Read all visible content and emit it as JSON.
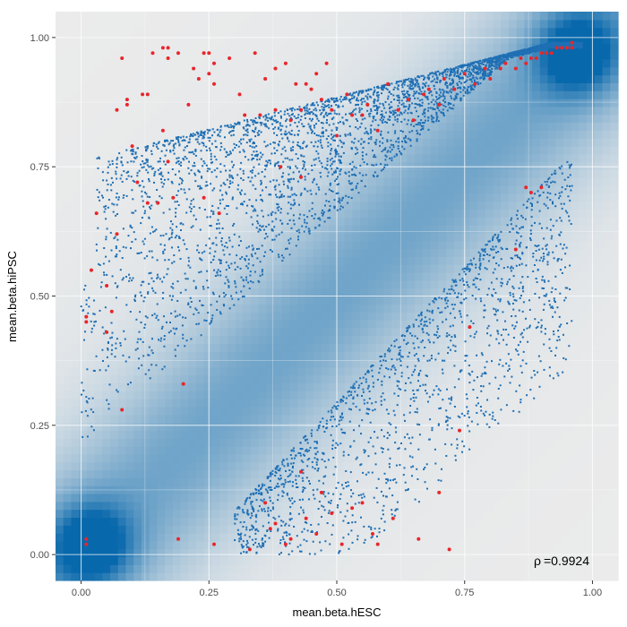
{
  "chart_data": {
    "type": "scatter",
    "title": "",
    "xlabel": "mean.beta.hESC",
    "ylabel": "mean.beta.hiPSC",
    "xlim": [
      -0.05,
      1.05
    ],
    "ylim": [
      -0.05,
      1.05
    ],
    "x_ticks": [
      "0.00",
      "0.25",
      "0.50",
      "0.75",
      "1.00"
    ],
    "y_ticks": [
      "0.00",
      "0.25",
      "0.50",
      "0.75",
      "1.00"
    ],
    "grid": true,
    "background": "density heatmap of all sites (light grey to blue), dense along the diagonal with hot spots near (0,0) and (1,1)",
    "annotation": {
      "rho_symbol": "ρ",
      "equals": "=",
      "value": "0.9924"
    },
    "series": [
      {
        "color": "#1f6fb4",
        "description": "differentially methylated sites (blue points)",
        "clusters": [
          {
            "region": "upper-left band (hiPSC > hESC)",
            "x_range": [
              0.0,
              0.98
            ],
            "y_offset_range": [
              0.2,
              0.55
            ],
            "approx_count": 3500
          },
          {
            "region": "lower-right band (hESC > hiPSC)",
            "x_range": [
              0.28,
              0.98
            ],
            "y_offset_range": [
              -0.55,
              -0.2
            ],
            "approx_count": 1600
          }
        ]
      },
      {
        "color": "#e8262b",
        "description": "highlighted sites (red points)",
        "points": [
          [
            0.01,
            0.02
          ],
          [
            0.01,
            0.03
          ],
          [
            0.01,
            0.45
          ],
          [
            0.01,
            0.46
          ],
          [
            0.02,
            0.55
          ],
          [
            0.03,
            0.66
          ],
          [
            0.05,
            0.43
          ],
          [
            0.05,
            0.52
          ],
          [
            0.06,
            0.47
          ],
          [
            0.07,
            0.86
          ],
          [
            0.07,
            0.62
          ],
          [
            0.08,
            0.28
          ],
          [
            0.08,
            0.96
          ],
          [
            0.09,
            0.87
          ],
          [
            0.09,
            0.88
          ],
          [
            0.1,
            0.79
          ],
          [
            0.11,
            0.72
          ],
          [
            0.12,
            0.89
          ],
          [
            0.13,
            0.89
          ],
          [
            0.13,
            0.68
          ],
          [
            0.14,
            0.97
          ],
          [
            0.15,
            0.68
          ],
          [
            0.16,
            0.98
          ],
          [
            0.16,
            0.82
          ],
          [
            0.17,
            0.98
          ],
          [
            0.17,
            0.96
          ],
          [
            0.17,
            0.76
          ],
          [
            0.18,
            0.69
          ],
          [
            0.19,
            0.97
          ],
          [
            0.2,
            0.33
          ],
          [
            0.21,
            0.87
          ],
          [
            0.22,
            0.94
          ],
          [
            0.23,
            0.92
          ],
          [
            0.24,
            0.97
          ],
          [
            0.24,
            0.69
          ],
          [
            0.25,
            0.97
          ],
          [
            0.25,
            0.93
          ],
          [
            0.26,
            0.91
          ],
          [
            0.26,
            0.95
          ],
          [
            0.27,
            0.66
          ],
          [
            0.29,
            0.96
          ],
          [
            0.31,
            0.89
          ],
          [
            0.32,
            0.85
          ],
          [
            0.34,
            0.97
          ],
          [
            0.35,
            0.85
          ],
          [
            0.36,
            0.92
          ],
          [
            0.38,
            0.94
          ],
          [
            0.38,
            0.86
          ],
          [
            0.39,
            0.75
          ],
          [
            0.4,
            0.95
          ],
          [
            0.41,
            0.84
          ],
          [
            0.42,
            0.91
          ],
          [
            0.43,
            0.86
          ],
          [
            0.43,
            0.73
          ],
          [
            0.44,
            0.91
          ],
          [
            0.45,
            0.9
          ],
          [
            0.46,
            0.93
          ],
          [
            0.47,
            0.88
          ],
          [
            0.48,
            0.95
          ],
          [
            0.49,
            0.86
          ],
          [
            0.5,
            0.81
          ],
          [
            0.52,
            0.89
          ],
          [
            0.53,
            0.85
          ],
          [
            0.55,
            0.85
          ],
          [
            0.56,
            0.87
          ],
          [
            0.58,
            0.82
          ],
          [
            0.6,
            0.91
          ],
          [
            0.62,
            0.86
          ],
          [
            0.64,
            0.88
          ],
          [
            0.65,
            0.84
          ],
          [
            0.67,
            0.89
          ],
          [
            0.68,
            0.9
          ],
          [
            0.7,
            0.87
          ],
          [
            0.71,
            0.92
          ],
          [
            0.73,
            0.9
          ],
          [
            0.75,
            0.93
          ],
          [
            0.77,
            0.91
          ],
          [
            0.79,
            0.94
          ],
          [
            0.8,
            0.92
          ],
          [
            0.82,
            0.94
          ],
          [
            0.83,
            0.95
          ],
          [
            0.85,
            0.94
          ],
          [
            0.86,
            0.96
          ],
          [
            0.87,
            0.95
          ],
          [
            0.88,
            0.96
          ],
          [
            0.89,
            0.96
          ],
          [
            0.9,
            0.97
          ],
          [
            0.91,
            0.97
          ],
          [
            0.92,
            0.97
          ],
          [
            0.93,
            0.98
          ],
          [
            0.94,
            0.98
          ],
          [
            0.95,
            0.98
          ],
          [
            0.96,
            0.98
          ],
          [
            0.96,
            0.99
          ],
          [
            0.19,
            0.03
          ],
          [
            0.26,
            0.02
          ],
          [
            0.33,
            0.01
          ],
          [
            0.36,
            0.1
          ],
          [
            0.37,
            0.05
          ],
          [
            0.38,
            0.06
          ],
          [
            0.4,
            0.02
          ],
          [
            0.41,
            0.03
          ],
          [
            0.43,
            0.16
          ],
          [
            0.44,
            0.07
          ],
          [
            0.46,
            0.04
          ],
          [
            0.47,
            0.12
          ],
          [
            0.49,
            0.08
          ],
          [
            0.51,
            0.02
          ],
          [
            0.53,
            0.09
          ],
          [
            0.55,
            0.1
          ],
          [
            0.57,
            0.04
          ],
          [
            0.58,
            0.02
          ],
          [
            0.61,
            0.07
          ],
          [
            0.66,
            0.03
          ],
          [
            0.7,
            0.12
          ],
          [
            0.72,
            0.01
          ],
          [
            0.74,
            0.24
          ],
          [
            0.76,
            0.44
          ],
          [
            0.85,
            0.59
          ],
          [
            0.87,
            0.71
          ],
          [
            0.88,
            0.7
          ],
          [
            0.9,
            0.71
          ]
        ]
      }
    ]
  }
}
